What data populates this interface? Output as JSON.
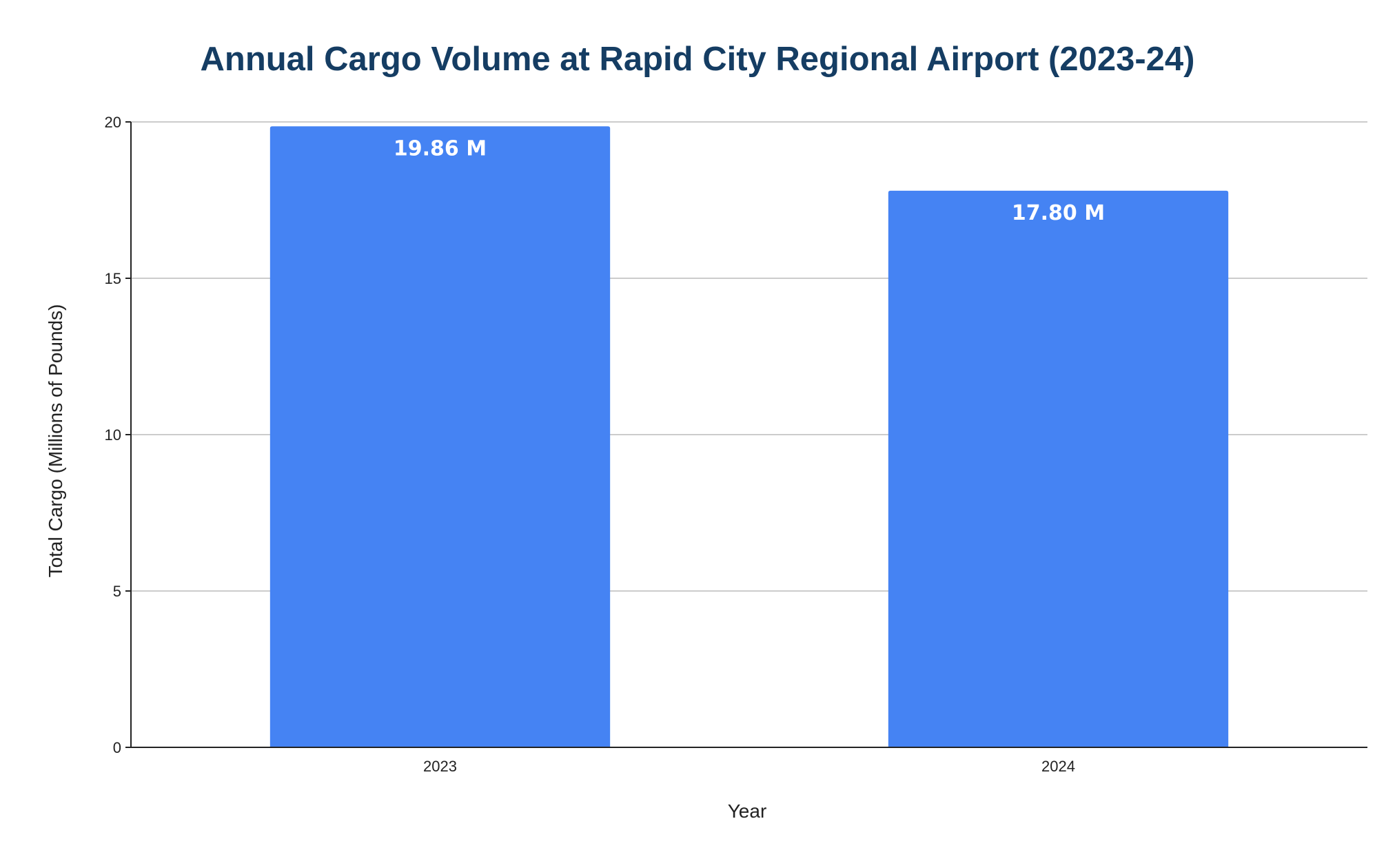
{
  "chart_data": {
    "type": "bar",
    "title": "Annual Cargo Volume at Rapid City Regional Airport (2023-24)",
    "xlabel": "Year",
    "ylabel": "Total Cargo (Millions of Pounds)",
    "categories": [
      "2023",
      "2024"
    ],
    "values": [
      19.86,
      17.8
    ],
    "data_labels": [
      "19.86 M",
      "17.80 M"
    ],
    "ylim": [
      0,
      20
    ],
    "yticks": [
      0,
      5,
      10,
      15,
      20
    ],
    "ytick_labels": [
      "0",
      "5",
      "10",
      "15",
      "20"
    ],
    "grid": true,
    "legend": "none",
    "colors": {
      "bar": "#4583f3",
      "title": "#153d63",
      "grid": "#cccccc",
      "axis": "#222222"
    }
  }
}
